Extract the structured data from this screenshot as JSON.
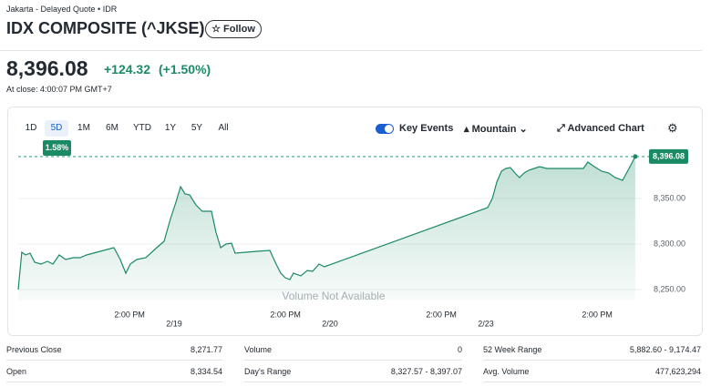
{
  "header": {
    "quote_source": "Jakarta - Delayed Quote • IDR",
    "title": "IDX COMPOSITE (^JKSE)",
    "follow": "Follow"
  },
  "price": {
    "last": "8,396.08",
    "change": "+124.32",
    "change_pct": "(+1.50%)",
    "time": "At close: 4:00:07 PM GMT+7"
  },
  "toolbar": {
    "ranges": [
      "1D",
      "5D",
      "1M",
      "6M",
      "YTD",
      "1Y",
      "5Y",
      "All"
    ],
    "selected": 1,
    "range_change": "1.58%",
    "key_events": "Key Events",
    "chart_type": "Mountain",
    "advanced": "Advanced Chart"
  },
  "chart_data": {
    "type": "area",
    "color": "#1a8a64",
    "annotation": "Volume Not Available",
    "reference_line": {
      "value": 8396.08,
      "label": "8,396.08"
    },
    "x": [
      0,
      0.16,
      0.33,
      0.53,
      0.74,
      1.02,
      1.31,
      1.56,
      1.84,
      2.13,
      2.46,
      2.78,
      3.07,
      3.68,
      4.3,
      4.58,
      4.83,
      5.03,
      5.32,
      5.73,
      6.22,
      6.55,
      6.84,
      7.08,
      7.29,
      7.49,
      7.7,
      7.98,
      8.27,
      8.68,
      8.88,
      9.09,
      9.33,
      9.58,
      9.74,
      10.23,
      10.72,
      11.3,
      11.58,
      11.79,
      11.99,
      12.2,
      12.36,
      12.69,
      12.98,
      13.22,
      13.51,
      13.75,
      21.08,
      21.29,
      21.49,
      21.7,
      21.9,
      22.1,
      22.31,
      22.51,
      22.72,
      22.92,
      23.17,
      23.41,
      23.74,
      24.56,
      25.38,
      25.58,
      25.87,
      26.2,
      26.52,
      26.81,
      27.14,
      27.43,
      27.71
    ],
    "values": [
      8250,
      8291,
      8288,
      8290,
      8280,
      8278,
      8281,
      8278,
      8288,
      8283,
      8285,
      8285,
      8288,
      8292,
      8296,
      8283,
      8268,
      8278,
      8283,
      8285,
      8296,
      8303,
      8328,
      8346,
      8363,
      8355,
      8354,
      8343,
      8336,
      8336,
      8313,
      8296,
      8300,
      8301,
      8290,
      8291,
      8292,
      8293,
      8278,
      8268,
      8263,
      8261,
      8268,
      8265,
      8271,
      8270,
      8278,
      8275,
      8340,
      8350,
      8368,
      8380,
      8383,
      8384,
      8378,
      8373,
      8378,
      8381,
      8383,
      8385,
      8383,
      8383,
      8383,
      8390,
      8385,
      8380,
      8378,
      8373,
      8370,
      8383,
      8396.08
    ],
    "xlim": [
      0,
      28
    ],
    "ylim": [
      8238,
      8408
    ],
    "xticks": [
      {
        "value": 5,
        "label": "2:00 PM"
      },
      {
        "value": 7,
        "label": "2/19"
      },
      {
        "value": 12,
        "label": "2:00 PM"
      },
      {
        "value": 14,
        "label": "2/20"
      },
      {
        "value": 19,
        "label": "2:00 PM"
      },
      {
        "value": 21,
        "label": "2/23"
      },
      {
        "value": 26,
        "label": "2:00 PM"
      }
    ],
    "yticks": [
      {
        "value": 8250,
        "label": "8,250.00"
      },
      {
        "value": 8300,
        "label": "8,300.00"
      },
      {
        "value": 8350,
        "label": "8,350.00"
      }
    ],
    "grid": true
  },
  "stats": {
    "rows": [
      [
        "Previous Close",
        "8,271.77",
        "Volume",
        "0",
        "52 Week Range",
        "5,882.60 - 9,174.47"
      ],
      [
        "Open",
        "8,334.54",
        "Day's Range",
        "8,327.57 - 8,397.07",
        "Avg. Volume",
        "477,623,294"
      ]
    ]
  }
}
